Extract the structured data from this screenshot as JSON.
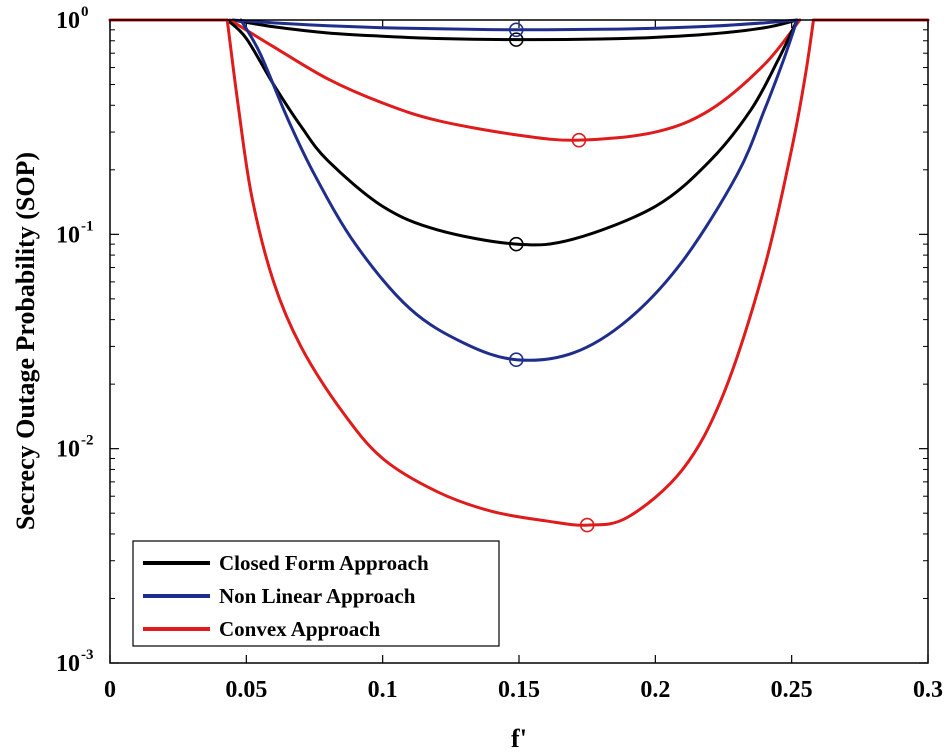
{
  "chart_data": {
    "type": "line",
    "title": "",
    "xlabel": "f'",
    "ylabel": "Secrecy Outage Probability (SOP)",
    "xlim": [
      0,
      0.3
    ],
    "ylim": [
      0.001,
      1
    ],
    "yscale": "log",
    "xticks": [
      "0",
      "0.05",
      "0.1",
      "0.15",
      "0.2",
      "0.25",
      "0.3"
    ],
    "yticks": [
      {
        "base": "10",
        "exp": "0",
        "value": 1
      },
      {
        "base": "10",
        "exp": "-1",
        "value": 0.1
      },
      {
        "base": "10",
        "exp": "-2",
        "value": 0.01
      },
      {
        "base": "10",
        "exp": "-3",
        "value": 0.001
      }
    ],
    "legend_position": "lower-left",
    "legend": [
      {
        "label": "Closed Form Approach",
        "color": "#000000"
      },
      {
        "label": "Non Linear Approach",
        "color": "#1f2e8c"
      },
      {
        "label": "Convex Approach",
        "color": "#e01b1b"
      }
    ],
    "series": [
      {
        "name": "Closed Form Approach",
        "color": "#000000",
        "x": [
          0.045,
          0.06,
          0.08,
          0.1,
          0.12,
          0.15,
          0.18,
          0.2,
          0.22,
          0.24,
          0.252
        ],
        "y": [
          1,
          0.93,
          0.87,
          0.84,
          0.82,
          0.81,
          0.815,
          0.83,
          0.86,
          0.92,
          1
        ],
        "min_marker": [
          0.149,
          0.81
        ]
      },
      {
        "name": "Non Linear Approach",
        "color": "#1f2e8c",
        "x": [
          0.045,
          0.06,
          0.08,
          0.1,
          0.12,
          0.15,
          0.18,
          0.2,
          0.22,
          0.24,
          0.252
        ],
        "y": [
          1,
          0.97,
          0.94,
          0.92,
          0.91,
          0.9,
          0.905,
          0.915,
          0.935,
          0.97,
          1
        ],
        "min_marker": [
          0.149,
          0.9
        ]
      },
      {
        "name": "Convex Approach",
        "color": "#e01b1b",
        "x": [
          0.044,
          0.06,
          0.08,
          0.1,
          0.12,
          0.15,
          0.172,
          0.2,
          0.22,
          0.24,
          0.253
        ],
        "y": [
          1,
          0.75,
          0.53,
          0.41,
          0.34,
          0.29,
          0.275,
          0.3,
          0.38,
          0.62,
          1
        ],
        "min_marker": [
          0.172,
          0.275
        ]
      },
      {
        "name": "Closed Form Approach",
        "color": "#000000",
        "x": [
          0.043,
          0.05,
          0.06,
          0.07,
          0.08,
          0.1,
          0.12,
          0.149,
          0.17,
          0.2,
          0.22,
          0.235,
          0.245,
          0.252
        ],
        "y": [
          1,
          0.82,
          0.5,
          0.32,
          0.22,
          0.135,
          0.105,
          0.09,
          0.095,
          0.135,
          0.22,
          0.38,
          0.65,
          1
        ],
        "min_marker": [
          0.149,
          0.09
        ]
      },
      {
        "name": "Non Linear Approach",
        "color": "#1f2e8c",
        "x": [
          0.048,
          0.055,
          0.065,
          0.075,
          0.09,
          0.11,
          0.13,
          0.149,
          0.17,
          0.19,
          0.21,
          0.23,
          0.24,
          0.247,
          0.252
        ],
        "y": [
          1,
          0.7,
          0.35,
          0.19,
          0.09,
          0.045,
          0.031,
          0.026,
          0.028,
          0.04,
          0.075,
          0.19,
          0.38,
          0.65,
          1
        ],
        "min_marker": [
          0.149,
          0.026
        ]
      },
      {
        "name": "Convex Approach",
        "color": "#e01b1b",
        "x": [
          0.043,
          0.047,
          0.052,
          0.06,
          0.07,
          0.085,
          0.1,
          0.12,
          0.14,
          0.16,
          0.175,
          0.19,
          0.21,
          0.225,
          0.24,
          0.25,
          0.255,
          0.258
        ],
        "y": [
          1,
          0.4,
          0.15,
          0.06,
          0.03,
          0.015,
          0.009,
          0.0063,
          0.0051,
          0.0046,
          0.0044,
          0.0048,
          0.008,
          0.018,
          0.07,
          0.25,
          0.55,
          1
        ],
        "min_marker": [
          0.175,
          0.0044
        ]
      },
      {
        "name": "Convex Approach",
        "color": "#e01b1b",
        "x": [
          0,
          0.043
        ],
        "y": [
          1,
          1
        ],
        "min_marker": null
      },
      {
        "name": "Convex Approach",
        "color": "#e01b1b",
        "x": [
          0.258,
          0.3
        ],
        "y": [
          1,
          1
        ],
        "min_marker": null
      }
    ]
  }
}
